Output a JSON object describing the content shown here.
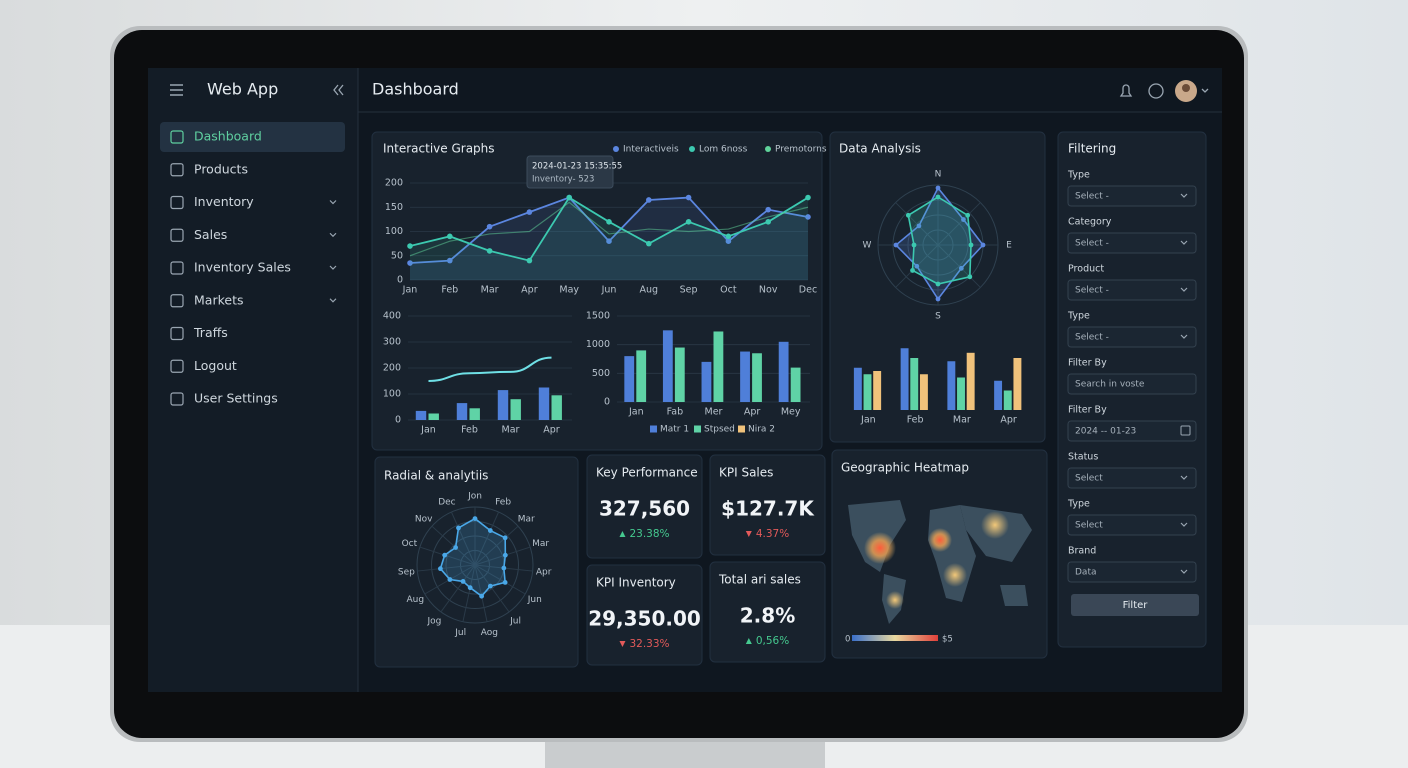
{
  "app": {
    "title": "Web App",
    "page_title": "Dashboard"
  },
  "nav": [
    {
      "label": "Dashboard",
      "active": true
    },
    {
      "label": "Products"
    },
    {
      "label": "Inventory",
      "expandable": true
    },
    {
      "label": "Sales",
      "expandable": true
    },
    {
      "label": "Inventory Sales",
      "expandable": true
    },
    {
      "label": "Markets",
      "expandable": true
    },
    {
      "label": "Traffs"
    },
    {
      "label": "Logout"
    },
    {
      "label": "User Settings"
    }
  ],
  "chart_data": [
    {
      "type": "line",
      "title": "Interactive Graphs",
      "categories": [
        "Jan",
        "Feb",
        "Mar",
        "Apr",
        "May",
        "Jun",
        "Aug",
        "Sep",
        "Oct",
        "Nov",
        "Dec"
      ],
      "series": [
        {
          "name": "Interactiveis",
          "color": "#5b86e0",
          "values": [
            35,
            40,
            110,
            140,
            170,
            80,
            165,
            170,
            80,
            145,
            130
          ]
        },
        {
          "name": "Lom 6noss",
          "color": "#3cc9b0",
          "values": [
            70,
            90,
            60,
            40,
            170,
            120,
            75,
            120,
            90,
            120,
            170
          ]
        },
        {
          "name": "Premotorns",
          "color": "#5fd39a",
          "values": [
            50,
            80,
            95,
            100,
            160,
            95,
            105,
            100,
            105,
            130,
            150
          ]
        }
      ],
      "ylim": [
        0,
        200
      ],
      "yticks": [
        0,
        50,
        100,
        150,
        200
      ],
      "grid": true,
      "tooltip": {
        "time": "2024-01-23 15:35:55",
        "text": "Inventory- 523"
      }
    },
    {
      "type": "bar",
      "categories": [
        "Jan",
        "Feb",
        "Mar",
        "Apr"
      ],
      "series": [
        {
          "color": "#4f7fd9",
          "values": [
            35,
            65,
            115,
            125
          ]
        },
        {
          "color": "#5fd3a6",
          "values": [
            25,
            45,
            80,
            95
          ]
        },
        {
          "type": "line",
          "color": "#6fe0e6",
          "values": [
            150,
            180,
            185,
            240
          ]
        }
      ],
      "ylim": [
        0,
        400
      ],
      "yticks": [
        0,
        100,
        200,
        300,
        400
      ],
      "grid": true
    },
    {
      "type": "bar",
      "categories": [
        "Jan",
        "Fab",
        "Mer",
        "Apr",
        "Mey"
      ],
      "series": [
        {
          "name": "Matr 1",
          "color": "#4f7fd9",
          "values": [
            800,
            1250,
            700,
            880,
            1050
          ]
        },
        {
          "name": "Stpsed",
          "color": "#5fd3a6",
          "values": [
            900,
            950,
            1230,
            850,
            600
          ]
        },
        {
          "name": "Nira 2",
          "color": "#f0c27b"
        }
      ],
      "ylim": [
        0,
        1500
      ],
      "yticks": [
        0,
        500,
        1000,
        1500
      ],
      "grid": true
    },
    {
      "type": "radar",
      "title": "Data Analysis",
      "categories": [
        "N",
        null,
        "E",
        null,
        "S",
        null,
        "W",
        null
      ],
      "series": [
        {
          "color": "#5b86e0",
          "values": [
            95,
            60,
            75,
            55,
            90,
            50,
            70,
            45
          ]
        },
        {
          "color": "#3cc9b0",
          "values": [
            80,
            70,
            55,
            75,
            65,
            60,
            40,
            70
          ]
        }
      ],
      "rlim": [
        0,
        100
      ]
    },
    {
      "type": "bar",
      "categories": [
        "Jan",
        "Feb",
        "Mar",
        "Apr"
      ],
      "series": [
        {
          "color": "#4f7fd9",
          "values": [
            65,
            95,
            75,
            45
          ]
        },
        {
          "color": "#5fd3a6",
          "values": [
            55,
            80,
            50,
            30
          ]
        },
        {
          "color": "#f0c27b",
          "values": [
            60,
            55,
            88,
            80
          ]
        }
      ],
      "ylim": [
        0,
        100
      ]
    },
    {
      "type": "radar",
      "title": "Radial & analytiis",
      "categories": [
        "Jon",
        "Feb",
        "Mar",
        "Mar",
        "Apr",
        "Jun",
        "Jul",
        "Aog",
        "Jul",
        "Jog",
        "Aug",
        "Sep",
        "Oct",
        "Nov",
        "Dec"
      ],
      "series": [
        {
          "color": "#4aa8e8",
          "values": [
            80,
            65,
            70,
            55,
            50,
            60,
            45,
            55,
            40,
            35,
            50,
            60,
            55,
            45,
            70
          ]
        }
      ],
      "rlim": [
        0,
        100
      ]
    },
    {
      "type": "map",
      "title": "Geographic Heatmap",
      "scale_labels": [
        "0",
        "$5"
      ]
    }
  ],
  "kpis": [
    {
      "title": "Key Performance",
      "value": "327,560",
      "change": "23.38%",
      "direction": "up"
    },
    {
      "title": "KPI Sales",
      "value": "$127.7K",
      "change": "4.37%",
      "direction": "down"
    },
    {
      "title": "KPI Inventory",
      "value": "29,350.00",
      "change": "32.33%",
      "direction": "down"
    },
    {
      "title": "Total ari sales",
      "value": "2.8%",
      "change": "0,56%",
      "direction": "up"
    }
  ],
  "filters": {
    "title": "Filtering",
    "button": "Filter",
    "fields": [
      {
        "label": "Type",
        "placeholder": "Select -",
        "kind": "select"
      },
      {
        "label": "Category",
        "placeholder": "Select -",
        "kind": "select"
      },
      {
        "label": "Product",
        "placeholder": "Select -",
        "kind": "select"
      },
      {
        "label": "Type",
        "placeholder": "Select -",
        "kind": "select"
      },
      {
        "label": "Filter By",
        "placeholder": "Search in voste",
        "kind": "search"
      },
      {
        "label": "Filter By",
        "placeholder": "2024 -- 01-23",
        "kind": "date"
      },
      {
        "label": "Status",
        "placeholder": "Select",
        "kind": "select"
      },
      {
        "label": "Type",
        "placeholder": "Select",
        "kind": "select"
      },
      {
        "label": "Brand",
        "placeholder": "Data",
        "kind": "select"
      }
    ]
  }
}
